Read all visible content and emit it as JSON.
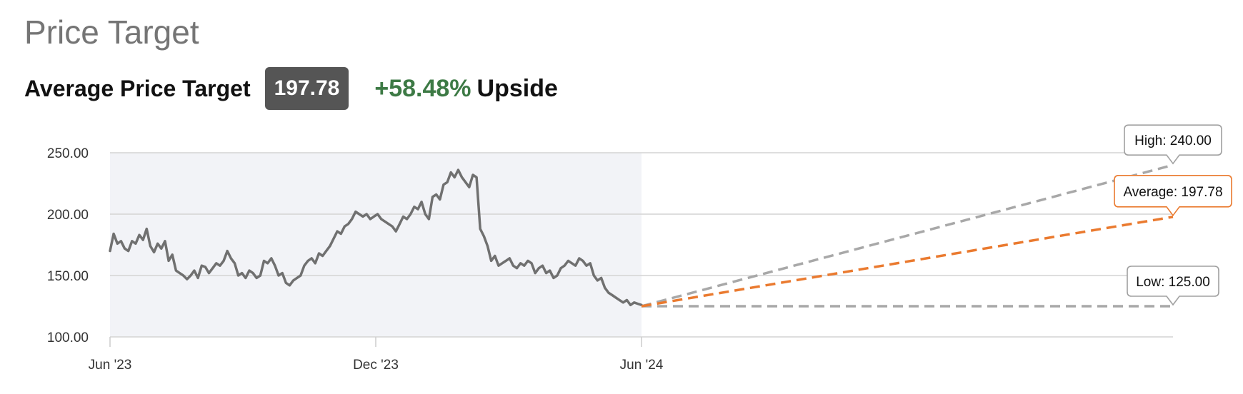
{
  "header": {
    "title": "Price Target",
    "avg_label": "Average Price Target",
    "avg_value": "197.78",
    "upside_value": "+58.48%",
    "upside_label": "Upside"
  },
  "colors": {
    "price_line": "#707070",
    "history_bg": "#f2f3f7",
    "grid": "#d4d4d4",
    "high_low": "#a8a8a8",
    "average": "#ea7a2f",
    "upside": "#3d7a45"
  },
  "chart_data": {
    "type": "line",
    "title": "",
    "ylim": [
      100,
      250
    ],
    "y_ticks": [
      "100.00",
      "150.00",
      "200.00",
      "250.00"
    ],
    "x_ticks": [
      "Jun '23",
      "Dec '23",
      "Jun '24"
    ],
    "x_range": [
      "2023-06",
      "2025-06"
    ],
    "grid": true,
    "legend": "none",
    "series": [
      {
        "values": [
          170,
          184,
          176,
          178,
          172,
          170,
          178,
          176,
          183,
          179,
          188,
          174,
          169,
          176,
          172,
          178,
          162,
          167,
          154,
          152,
          150,
          147,
          150,
          154,
          148,
          158,
          157,
          152,
          156,
          160,
          158,
          162,
          170,
          164,
          160,
          150,
          152,
          148,
          154,
          152,
          148,
          150,
          162,
          160,
          164,
          158,
          150,
          152,
          144,
          142,
          146,
          148,
          150,
          158,
          162,
          164,
          160,
          168,
          166,
          170,
          174,
          180,
          186,
          184,
          190,
          192,
          196,
          202,
          200,
          198,
          200,
          196,
          198,
          200,
          196,
          194,
          192,
          190,
          186,
          192,
          198,
          196,
          200,
          206,
          204,
          210,
          200,
          196,
          214,
          216,
          212,
          224,
          226,
          234,
          230,
          236,
          230,
          226,
          222,
          232,
          230,
          188,
          182,
          174,
          162,
          166,
          158,
          160,
          162,
          164,
          158,
          156,
          160,
          158,
          162,
          160,
          152,
          156,
          158,
          152,
          154,
          148,
          150,
          156,
          158,
          162,
          160,
          158,
          164,
          162,
          158,
          160,
          150,
          146,
          148,
          140,
          136,
          134,
          132,
          130,
          128,
          130,
          126,
          128,
          127,
          126
        ]
      }
    ],
    "targets": {
      "current": 125,
      "high": 240,
      "average": 197.78,
      "low": 125,
      "high_label": "High: 240.00",
      "average_label": "Average: 197.78",
      "low_label": "Low: 125.00"
    }
  }
}
